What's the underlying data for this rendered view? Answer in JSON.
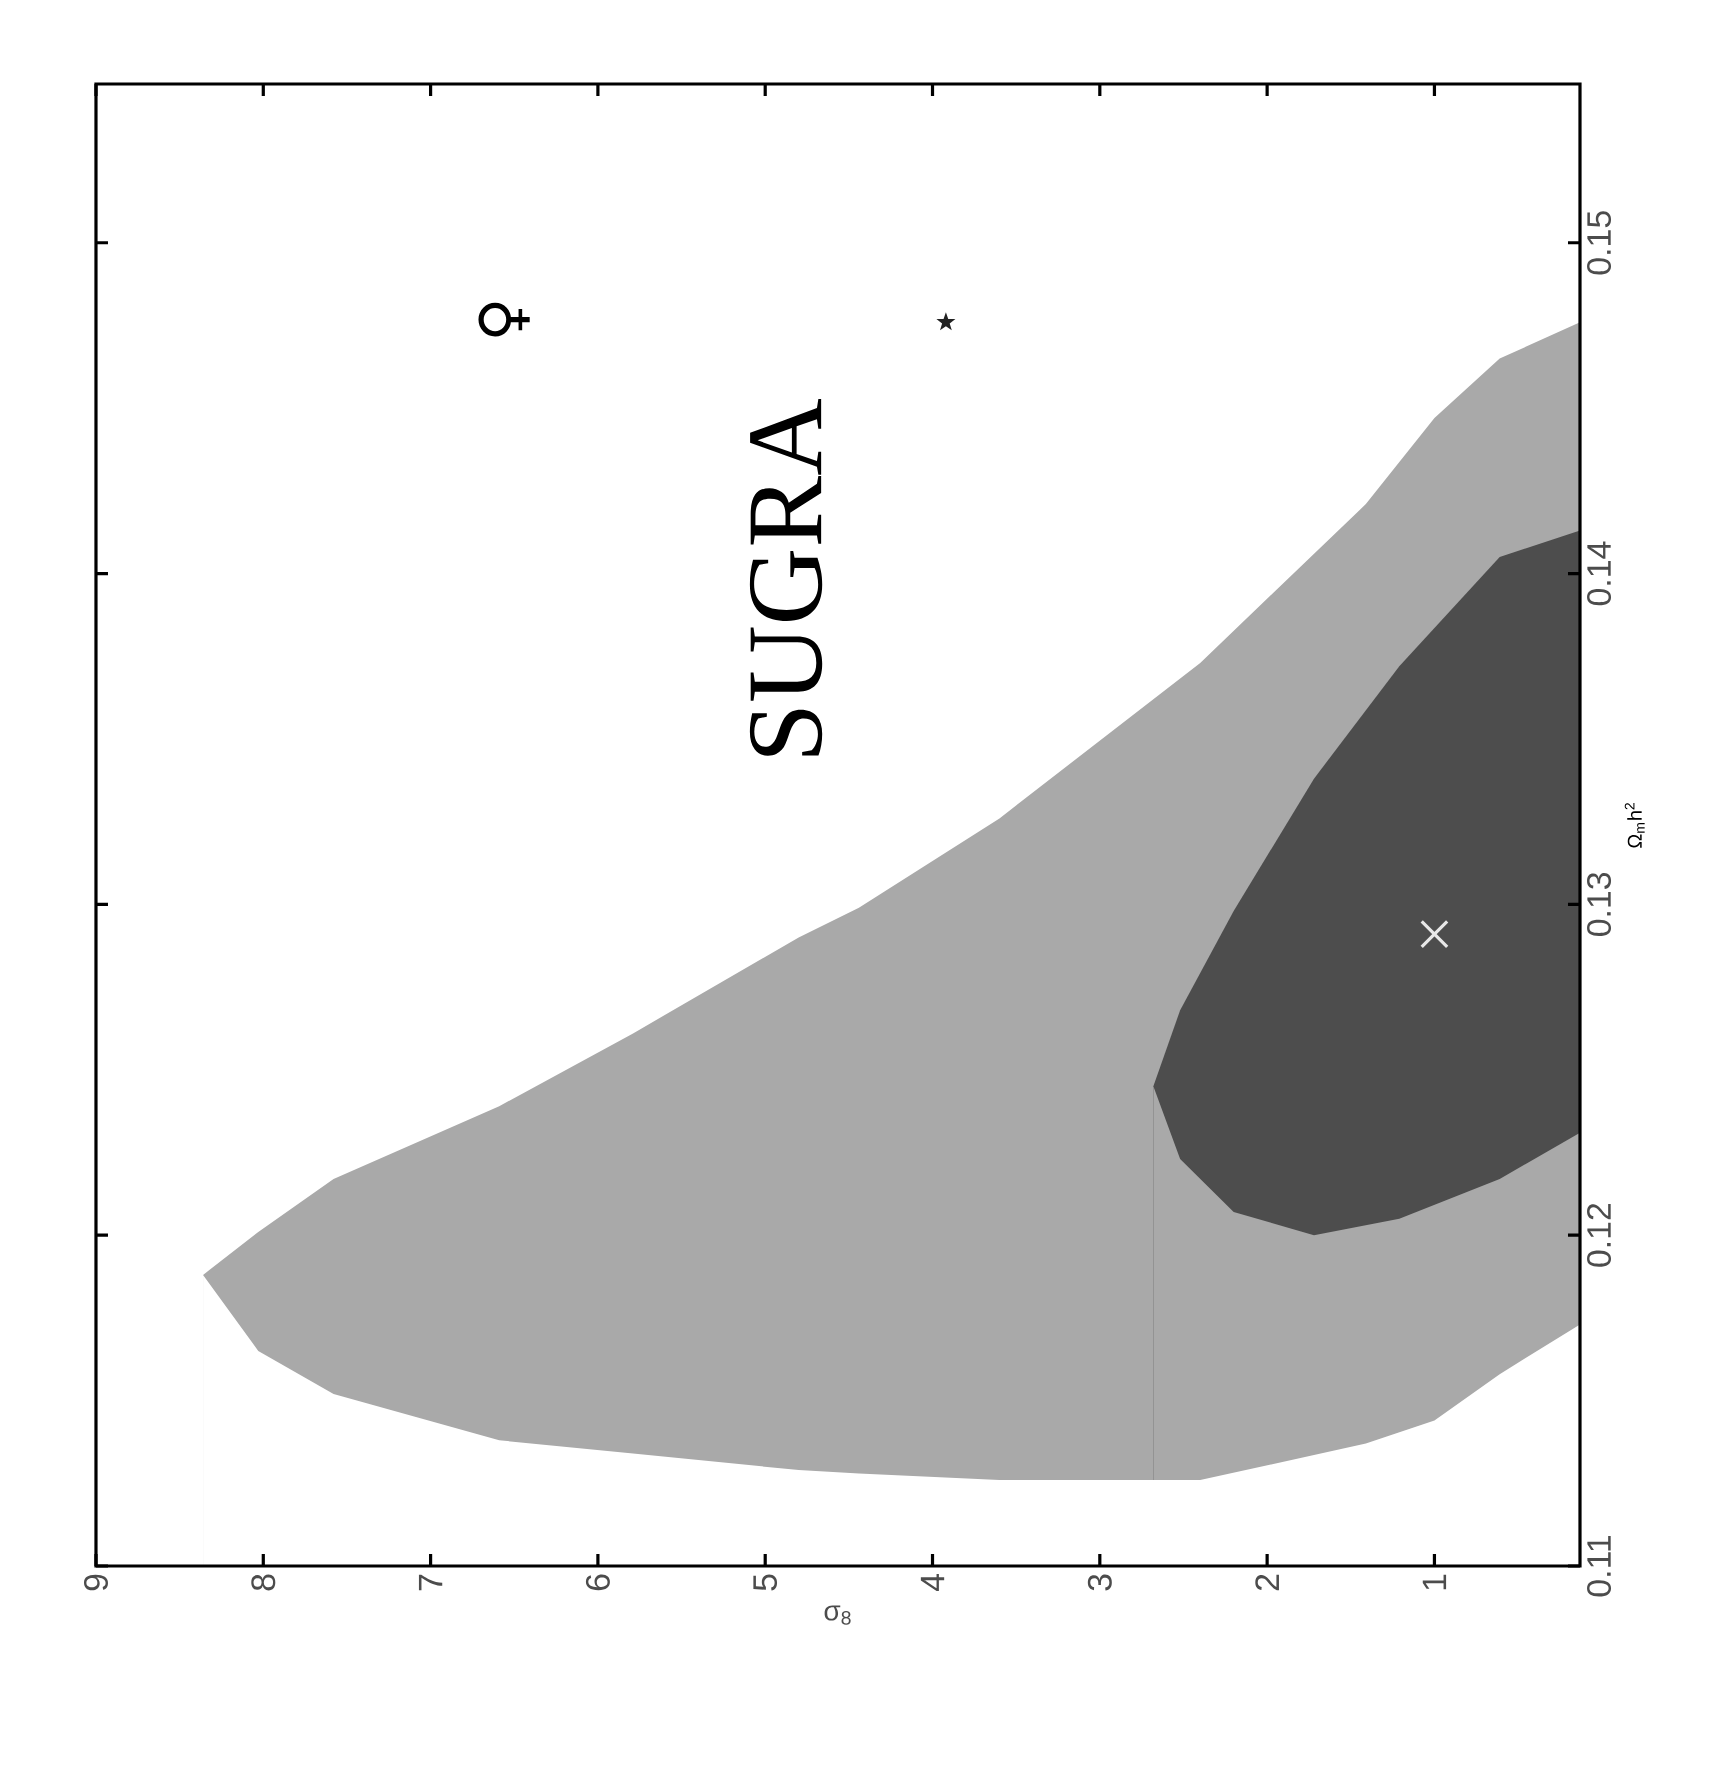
{
  "chart_data": {
    "type": "area",
    "xlabel": "σ$_{8}$",
    "ylabel": "Ω$_{m}$h$^{2}$",
    "xlim": [
      9,
      0.13
    ],
    "ylim": [
      0.11,
      0.1548
    ],
    "xticks": [
      9,
      8,
      7,
      6,
      5,
      4,
      3,
      2,
      1
    ],
    "yticks": [
      0.11,
      0.12,
      0.13,
      0.14,
      0.15
    ],
    "series": [
      {
        "color": "#a9a9a9",
        "x": [
          8.36,
          8.03,
          7.58,
          6.59,
          5.79,
          4.8,
          4.44,
          3.6,
          2.4,
          1.41,
          1.0,
          0.61,
          0.13
        ],
        "values": [
          0.1188,
          0.1201,
          0.1217,
          0.1239,
          0.1261,
          0.129,
          0.1299,
          0.1326,
          0.1373,
          0.1421,
          0.1447,
          0.1465,
          0.1476
        ]
      },
      {
        "color": "#4d4d4d",
        "x": [
          2.68,
          2.52,
          2.2,
          1.72,
          1.21,
          0.61,
          0.13
        ],
        "values": [
          0.1245,
          0.1268,
          0.1298,
          0.1338,
          0.1372,
          0.1405,
          0.1413
        ]
      },
      {
        "color": "#a9a9a9",
        "x": [
          2.68,
          2.52,
          2.2,
          1.72,
          1.21,
          0.61,
          0.13
        ],
        "values": [
          0.1245,
          0.1223,
          0.1207,
          0.12,
          0.1205,
          0.1217,
          0.1231
        ]
      },
      {
        "color": "#ffffff",
        "x": [
          8.36,
          8.03,
          7.58,
          6.59,
          5.79,
          4.8,
          4.44,
          3.6,
          2.4,
          1.41,
          1.0,
          0.61,
          0.13
        ],
        "values": [
          0.1188,
          0.1165,
          0.1152,
          0.1138,
          0.1134,
          0.1129,
          0.1128,
          0.1126,
          0.1126,
          0.1137,
          0.1144,
          0.1158,
          0.1173
        ]
      },
      {
        "type": "scatter",
        "color": "#e8e8e8",
        "marker": "cross",
        "x": [
          1.0
        ],
        "values": [
          0.1291
        ]
      },
      {
        "type": "scatter",
        "color": "#222222",
        "marker": "star",
        "x": [
          3.92
        ],
        "values": [
          0.1476
        ]
      }
    ],
    "annotations": [
      "SUGRA",
      "♀"
    ]
  }
}
